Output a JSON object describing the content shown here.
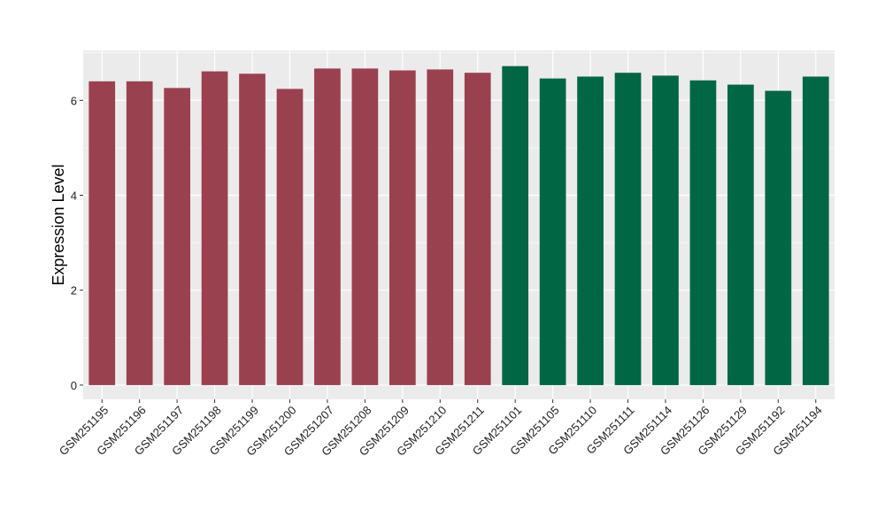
{
  "chart_data": {
    "type": "bar",
    "title": "",
    "xlabel": "",
    "ylabel": "Expression Level",
    "ylim": [
      -0.3,
      7.05
    ],
    "yticks": [
      0,
      2,
      4,
      6
    ],
    "grid": true,
    "legend": "none",
    "colors": {
      "panel_bg": "#ebebeb",
      "grid": "#ffffff",
      "group_a": "#9a4150",
      "group_b": "#006644",
      "axis_text": "#222222"
    },
    "categories": [
      "GSM251195",
      "GSM251196",
      "GSM251197",
      "GSM251198",
      "GSM251199",
      "GSM251200",
      "GSM251207",
      "GSM251208",
      "GSM251209",
      "GSM251210",
      "GSM251211",
      "GSM251101",
      "GSM251105",
      "GSM251110",
      "GSM251111",
      "GSM251114",
      "GSM251126",
      "GSM251129",
      "GSM251192",
      "GSM251194"
    ],
    "values": [
      6.4,
      6.4,
      6.26,
      6.61,
      6.56,
      6.24,
      6.67,
      6.67,
      6.63,
      6.65,
      6.58,
      6.72,
      6.46,
      6.5,
      6.58,
      6.52,
      6.42,
      6.33,
      6.2,
      6.5
    ],
    "groups": [
      "a",
      "a",
      "a",
      "a",
      "a",
      "a",
      "a",
      "a",
      "a",
      "a",
      "a",
      "b",
      "b",
      "b",
      "b",
      "b",
      "b",
      "b",
      "b",
      "b"
    ]
  }
}
